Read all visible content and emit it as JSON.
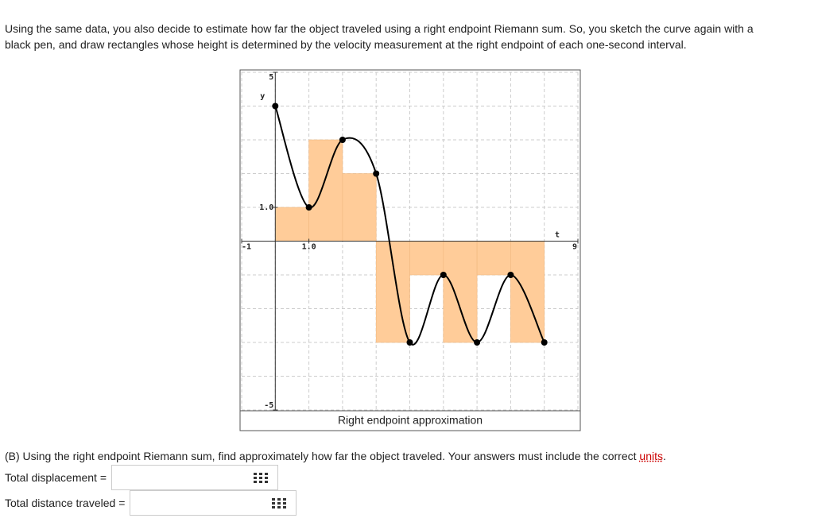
{
  "intro": [
    "Using the same data, you also decide to estimate how far the object traveled using a right endpoint Riemann sum. So, you sketch the curve again with a",
    "black pen, and draw rectangles whose height is determined by the velocity measurement at the right endpoint of each one-second interval."
  ],
  "chart_data": {
    "type": "line",
    "xlabel": "t",
    "ylabel": "y",
    "caption": "Right endpoint approximation",
    "x": [
      0,
      1,
      2,
      3,
      4,
      5,
      6,
      7,
      8
    ],
    "series": [
      {
        "color": "#000000",
        "values": [
          4,
          1,
          3,
          2,
          -3,
          -1,
          -3,
          -1,
          -3
        ]
      }
    ],
    "rect_color": "#ffcc99",
    "xlim": [
      -1,
      9
    ],
    "ylim": [
      -5,
      5
    ],
    "xticks": [
      -1,
      {
        "value": 1,
        "label": "1.0"
      },
      9
    ],
    "yticks": [
      5,
      {
        "value": 1,
        "label": "1.0"
      },
      -5
    ],
    "xgrid": [
      -1,
      0,
      1,
      2,
      3,
      4,
      5,
      6,
      7,
      8,
      9
    ],
    "ygrid": [
      -5,
      -4,
      -3,
      -2,
      -1,
      0,
      1,
      2,
      3,
      4,
      5
    ],
    "grid": true
  },
  "question": {
    "text": "(B) Using the right endpoint Riemann sum, find approximately how far the object traveled. Your answers must include the correct ",
    "link": "units",
    "end": "."
  },
  "fields": [
    {
      "label": "Total displacement ="
    },
    {
      "label": "Total distance traveled ="
    }
  ]
}
